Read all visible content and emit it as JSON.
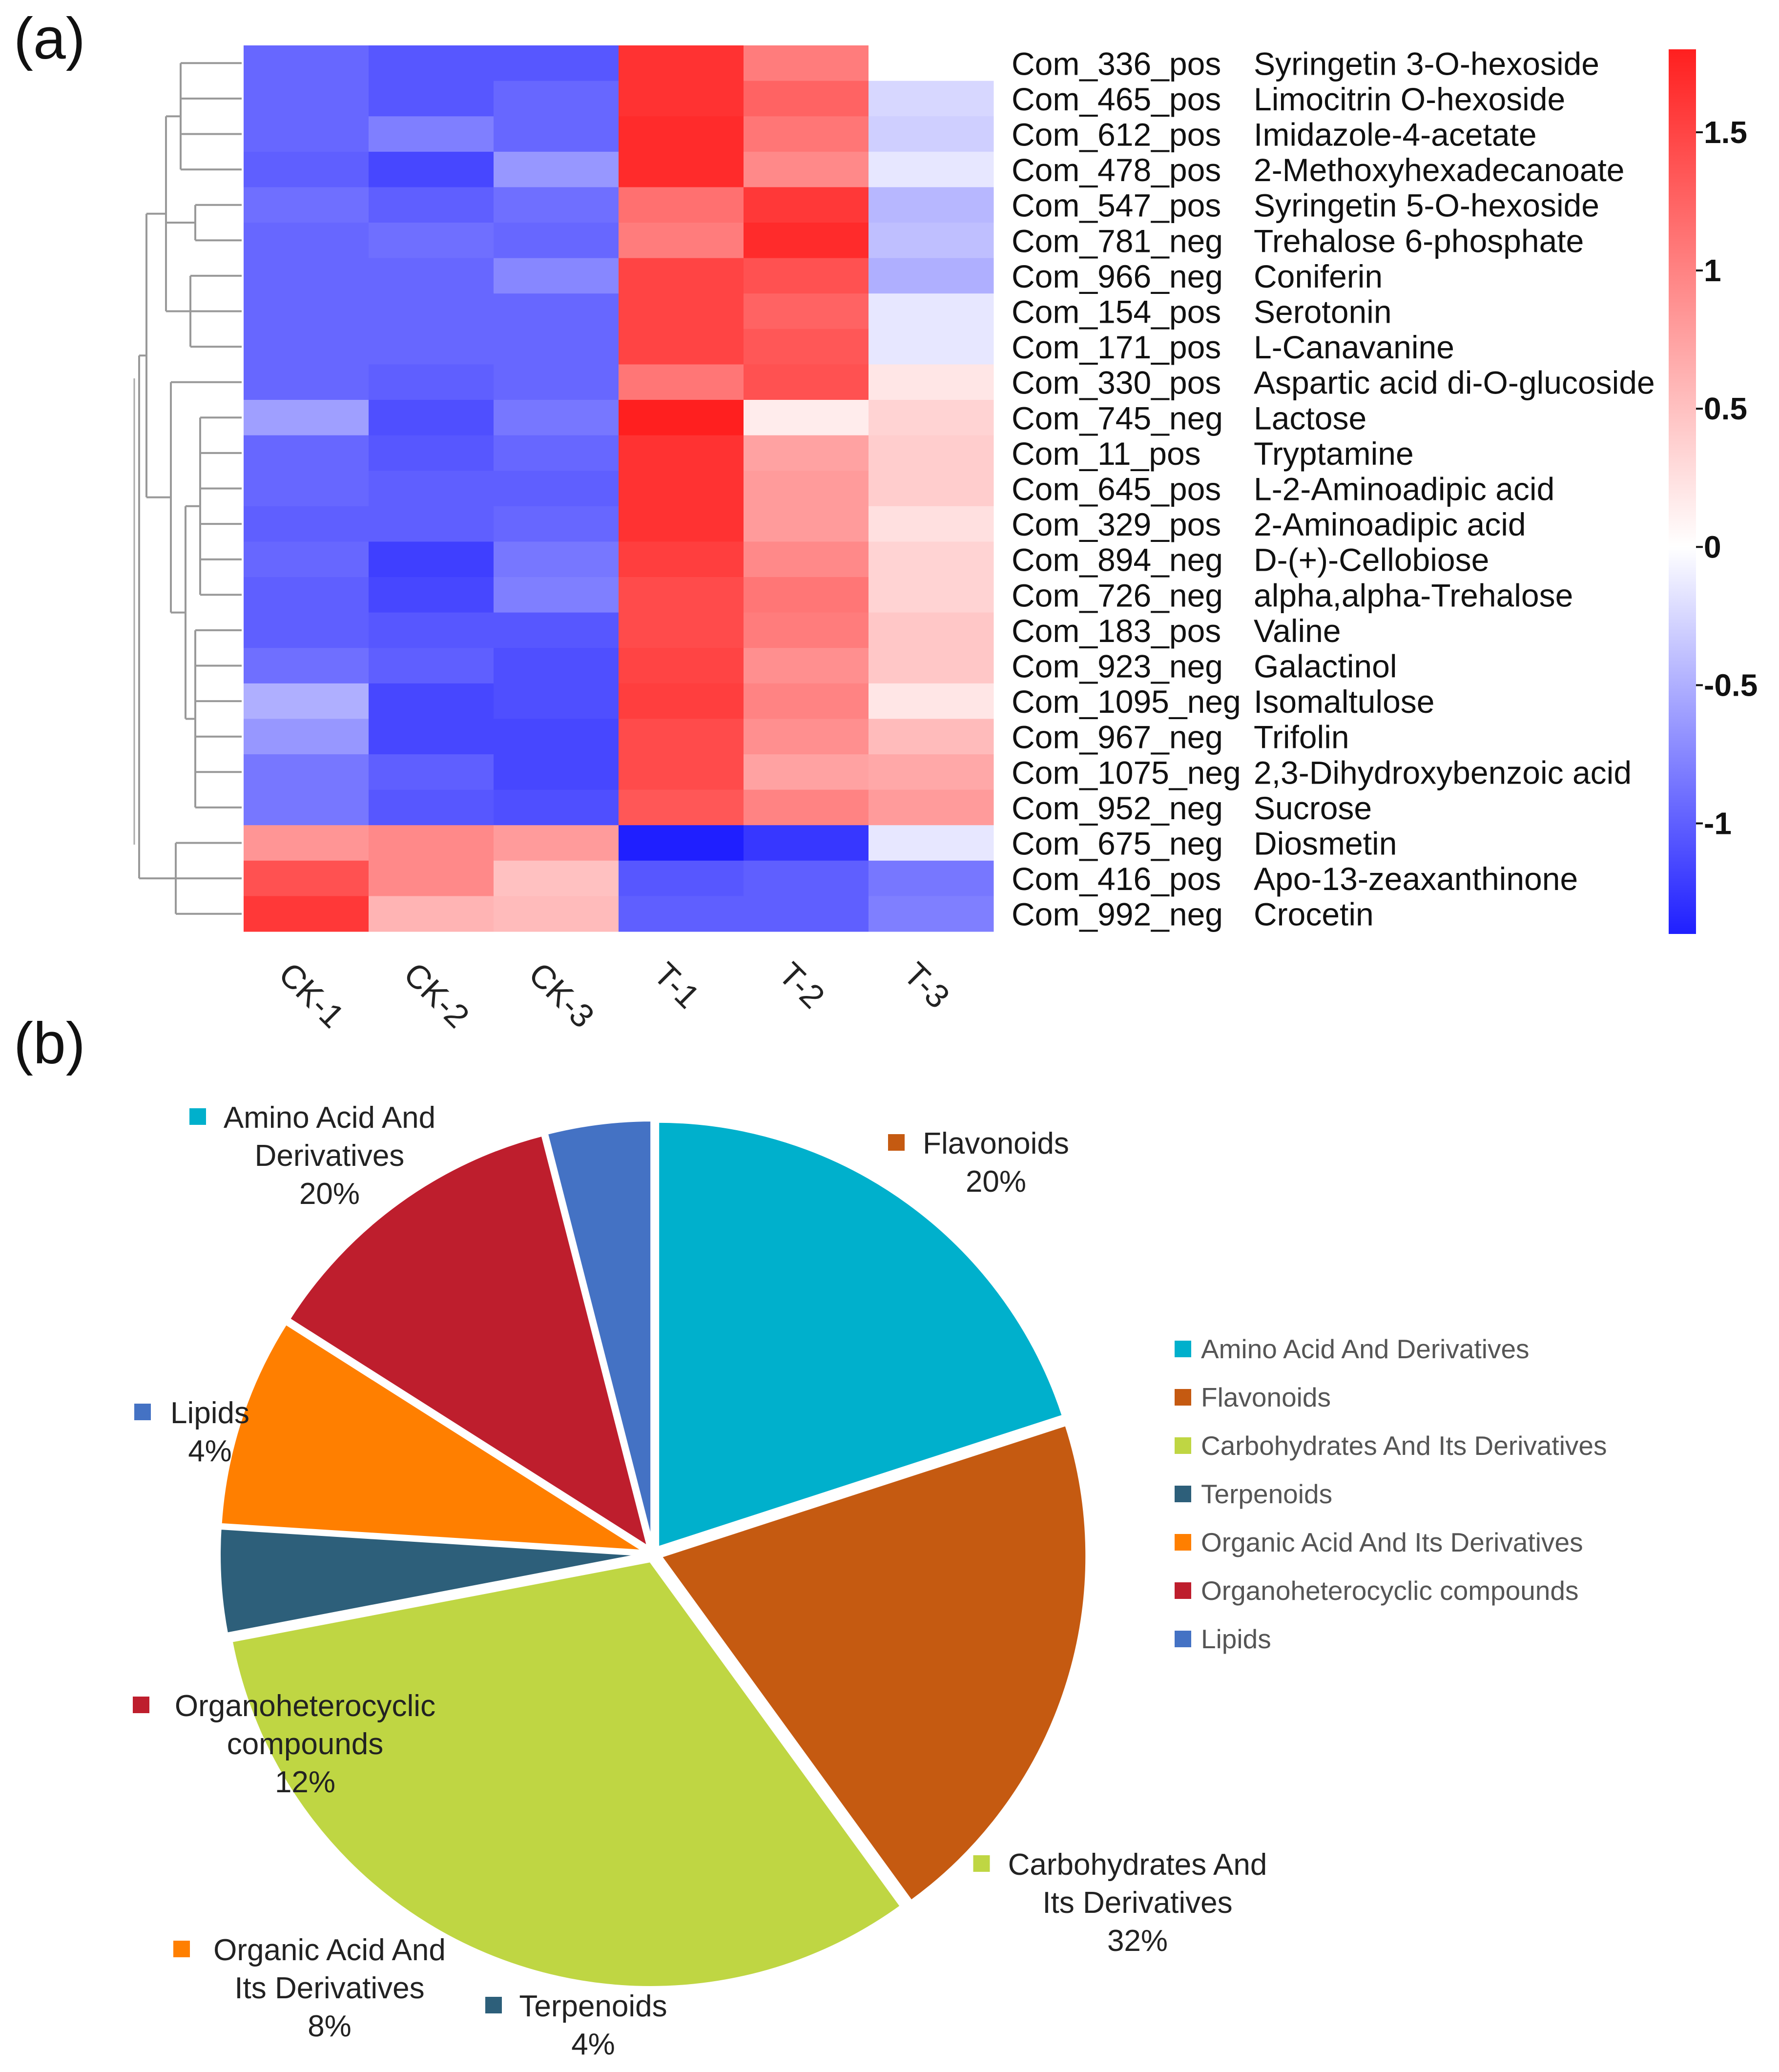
{
  "panel_labels": {
    "a": "(a)",
    "b": "(b)"
  },
  "chart_data": [
    {
      "type": "heatmap",
      "columns": [
        "CK-1",
        "CK-2",
        "CK-3",
        "T-1",
        "T-2",
        "T-3"
      ],
      "rows": [
        {
          "id": "Com_336_pos",
          "name": "Syringetin 3-O-hexoside",
          "values": [
            -0.95,
            -1.05,
            -1.05,
            1.65,
            1.05,
            0.0
          ]
        },
        {
          "id": "Com_465_pos",
          "name": "Limocitrin O-hexoside",
          "values": [
            -0.95,
            -1.05,
            -0.95,
            1.65,
            1.25,
            -0.25
          ]
        },
        {
          "id": "Com_612_pos",
          "name": "Imidazole-4-acetate",
          "values": [
            -0.95,
            -0.8,
            -0.95,
            1.7,
            1.1,
            -0.3
          ]
        },
        {
          "id": "Com_478_pos",
          "name": "2-Methoxyhexadecanoate",
          "values": [
            -1.0,
            -1.15,
            -0.65,
            1.7,
            0.95,
            -0.15
          ]
        },
        {
          "id": "Com_547_pos",
          "name": "Syringetin 5-O-hexoside",
          "values": [
            -0.9,
            -1.0,
            -0.9,
            1.15,
            1.6,
            -0.45
          ]
        },
        {
          "id": "Com_781_neg",
          "name": "Trehalose 6-phosphate",
          "values": [
            -0.95,
            -0.9,
            -0.95,
            1.05,
            1.7,
            -0.4
          ]
        },
        {
          "id": "Com_966_neg",
          "name": "Coniferin",
          "values": [
            -0.95,
            -0.95,
            -0.75,
            1.5,
            1.4,
            -0.5
          ]
        },
        {
          "id": "Com_154_pos",
          "name": "Serotonin",
          "values": [
            -0.95,
            -0.95,
            -0.95,
            1.5,
            1.25,
            -0.15
          ]
        },
        {
          "id": "Com_171_pos",
          "name": "L-Canavanine",
          "values": [
            -0.95,
            -0.95,
            -0.95,
            1.5,
            1.35,
            -0.15
          ]
        },
        {
          "id": "Com_330_pos",
          "name": "Aspartic acid di-O-glucoside",
          "values": [
            -0.95,
            -1.0,
            -0.95,
            1.1,
            1.4,
            0.2
          ]
        },
        {
          "id": "Com_745_neg",
          "name": "Lactose",
          "values": [
            -0.6,
            -1.1,
            -0.85,
            1.8,
            0.15,
            0.35
          ]
        },
        {
          "id": "Com_11_pos",
          "name": "Tryptamine",
          "values": [
            -0.95,
            -1.05,
            -0.95,
            1.65,
            0.75,
            0.4
          ]
        },
        {
          "id": "Com_645_pos",
          "name": "L-2-Aminoadipic acid",
          "values": [
            -0.95,
            -1.0,
            -1.0,
            1.65,
            0.8,
            0.4
          ]
        },
        {
          "id": "Com_329_pos",
          "name": "2-Aminoadipic acid",
          "values": [
            -1.0,
            -1.0,
            -0.95,
            1.65,
            0.8,
            0.25
          ]
        },
        {
          "id": "Com_894_neg",
          "name": "D-(+)-Cellobiose",
          "values": [
            -0.95,
            -1.2,
            -0.85,
            1.55,
            0.95,
            0.35
          ]
        },
        {
          "id": "Com_726_neg",
          "name": "alpha,alpha-Trehalose",
          "values": [
            -1.0,
            -1.15,
            -0.8,
            1.45,
            1.1,
            0.35
          ]
        },
        {
          "id": "Com_183_pos",
          "name": "Valine",
          "values": [
            -1.0,
            -1.05,
            -1.05,
            1.45,
            1.05,
            0.45
          ]
        },
        {
          "id": "Com_923_neg",
          "name": "Galactinol",
          "values": [
            -0.9,
            -1.0,
            -1.1,
            1.5,
            0.9,
            0.45
          ]
        },
        {
          "id": "Com_1095_neg",
          "name": "Isomaltulose",
          "values": [
            -0.5,
            -1.15,
            -1.1,
            1.55,
            1.0,
            0.2
          ]
        },
        {
          "id": "Com_967_neg",
          "name": "Trifolin",
          "values": [
            -0.65,
            -1.15,
            -1.15,
            1.45,
            0.9,
            0.55
          ]
        },
        {
          "id": "Com_1075_neg",
          "name": "2,3-Dihydroxybenzoic acid",
          "values": [
            -0.85,
            -1.0,
            -1.15,
            1.45,
            0.75,
            0.7
          ]
        },
        {
          "id": "Com_952_neg",
          "name": "Sucrose",
          "values": [
            -0.85,
            -1.05,
            -1.1,
            1.35,
            1.0,
            0.8
          ]
        },
        {
          "id": "Com_675_neg",
          "name": "Diosmetin",
          "values": [
            0.85,
            0.95,
            0.8,
            -1.4,
            -1.25,
            -0.15
          ]
        },
        {
          "id": "Com_416_pos",
          "name": "Apo-13-zeaxanthinone",
          "values": [
            1.4,
            0.95,
            0.5,
            -1.05,
            -1.0,
            -0.85
          ]
        },
        {
          "id": "Com_992_neg",
          "name": "Crocetin",
          "values": [
            1.6,
            0.6,
            0.55,
            -1.0,
            -1.0,
            -0.8
          ]
        }
      ],
      "color_scale": {
        "min": -1.4,
        "max": 1.8,
        "low_color": "#1f1fff",
        "mid_color": "#ffffff",
        "high_color": "#ff1f1f"
      },
      "colorbar_ticks": [
        {
          "value": 1.5,
          "label": "1.5"
        },
        {
          "value": 1.0,
          "label": "1"
        },
        {
          "value": 0.5,
          "label": "0.5"
        },
        {
          "value": 0.0,
          "label": "0"
        },
        {
          "value": -0.5,
          "label": "-0.5"
        },
        {
          "value": -1.0,
          "label": "-1"
        }
      ],
      "dendrogram": "rows clustered (left side)"
    },
    {
      "type": "pie",
      "slices": [
        {
          "category": "Amino Acid And Derivatives",
          "label_lines": [
            "Amino Acid And",
            "Derivatives"
          ],
          "value": 20,
          "pct_label": "20%",
          "color": "#00b0cc"
        },
        {
          "category": "Flavonoids",
          "label_lines": [
            "Flavonoids"
          ],
          "value": 20,
          "pct_label": "20%",
          "color": "#c55a11"
        },
        {
          "category": "Carbohydrates And Its Derivatives",
          "label_lines": [
            "Carbohydrates And",
            "Its Derivatives"
          ],
          "value": 32,
          "pct_label": "32%",
          "color": "#bfd643"
        },
        {
          "category": "Terpenoids",
          "label_lines": [
            "Terpenoids"
          ],
          "value": 4,
          "pct_label": "4%",
          "color": "#2d5f7a"
        },
        {
          "category": "Organic Acid And Its Derivatives",
          "label_lines": [
            "Organic Acid And",
            "Its Derivatives"
          ],
          "value": 8,
          "pct_label": "8%",
          "color": "#ff7f00"
        },
        {
          "category": "Organoheterocyclic compounds",
          "label_lines": [
            "Organoheterocyclic",
            "compounds"
          ],
          "value": 12,
          "pct_label": "12%",
          "color": "#be1e2d"
        },
        {
          "category": "Lipids",
          "label_lines": [
            "Lipids"
          ],
          "value": 4,
          "pct_label": "4%",
          "color": "#4472c4"
        }
      ],
      "legend": {
        "placement": "right",
        "items": [
          {
            "label": "Amino Acid And Derivatives",
            "color": "#00b0cc"
          },
          {
            "label": "Flavonoids",
            "color": "#c55a11"
          },
          {
            "label": "Carbohydrates And Its Derivatives",
            "color": "#bfd643"
          },
          {
            "label": "Terpenoids",
            "color": "#2d5f7a"
          },
          {
            "label": "Organic Acid And Its Derivatives",
            "color": "#ff7f00"
          },
          {
            "label": "Organoheterocyclic compounds",
            "color": "#be1e2d"
          },
          {
            "label": "Lipids",
            "color": "#4472c4"
          }
        ]
      }
    }
  ]
}
